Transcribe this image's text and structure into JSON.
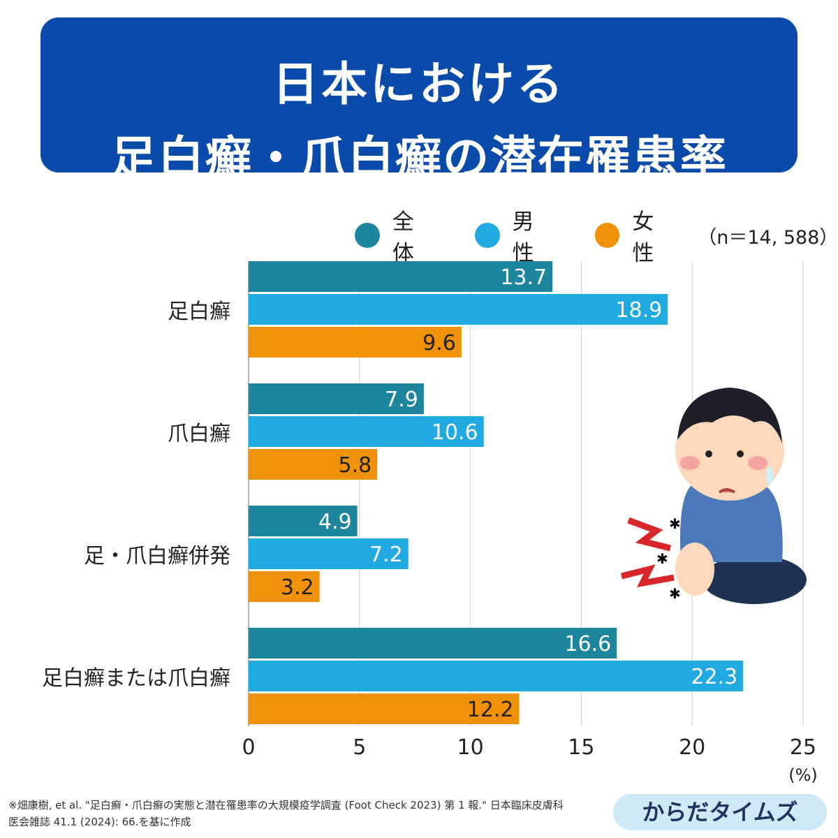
{
  "title": {
    "line1": "日本における",
    "line2": "足白癬・爪白癬の潜在罹患率"
  },
  "legend": {
    "items": [
      {
        "label": "全体",
        "color": "#1d869d"
      },
      {
        "label": "男性",
        "color": "#21a9e1"
      },
      {
        "label": "女性",
        "color": "#f0910a"
      }
    ],
    "n": "（n＝14, 588）"
  },
  "chart_data": {
    "type": "bar",
    "orientation": "horizontal",
    "categories": [
      "足白癬",
      "爪白癬",
      "足・爪白癬併発",
      "足白癬または爪白癬"
    ],
    "series": [
      {
        "name": "全体",
        "color": "#1d869d",
        "values": [
          13.7,
          7.9,
          4.9,
          16.6
        ]
      },
      {
        "name": "男性",
        "color": "#21a9e1",
        "values": [
          18.9,
          10.6,
          7.2,
          22.3
        ]
      },
      {
        "name": "女性",
        "color": "#f0910a",
        "values": [
          9.6,
          5.8,
          3.2,
          12.2
        ]
      }
    ],
    "xlim": [
      0,
      25
    ],
    "xticks": [
      "0",
      "5",
      "10",
      "15",
      "20",
      "25"
    ],
    "xunit": "(%)",
    "grid": true
  },
  "footer": {
    "citation_line1": "※畑康樹, et al. \"足白癬・爪白癬の実態と潜在罹患率の大規模疫学調査 (Foot Check 2023) 第 1 報.\" 日本臨床皮膚科",
    "citation_line2": "医会雑誌 41.1 (2024): 66.を基に作成",
    "brand": "からだタイムズ"
  }
}
